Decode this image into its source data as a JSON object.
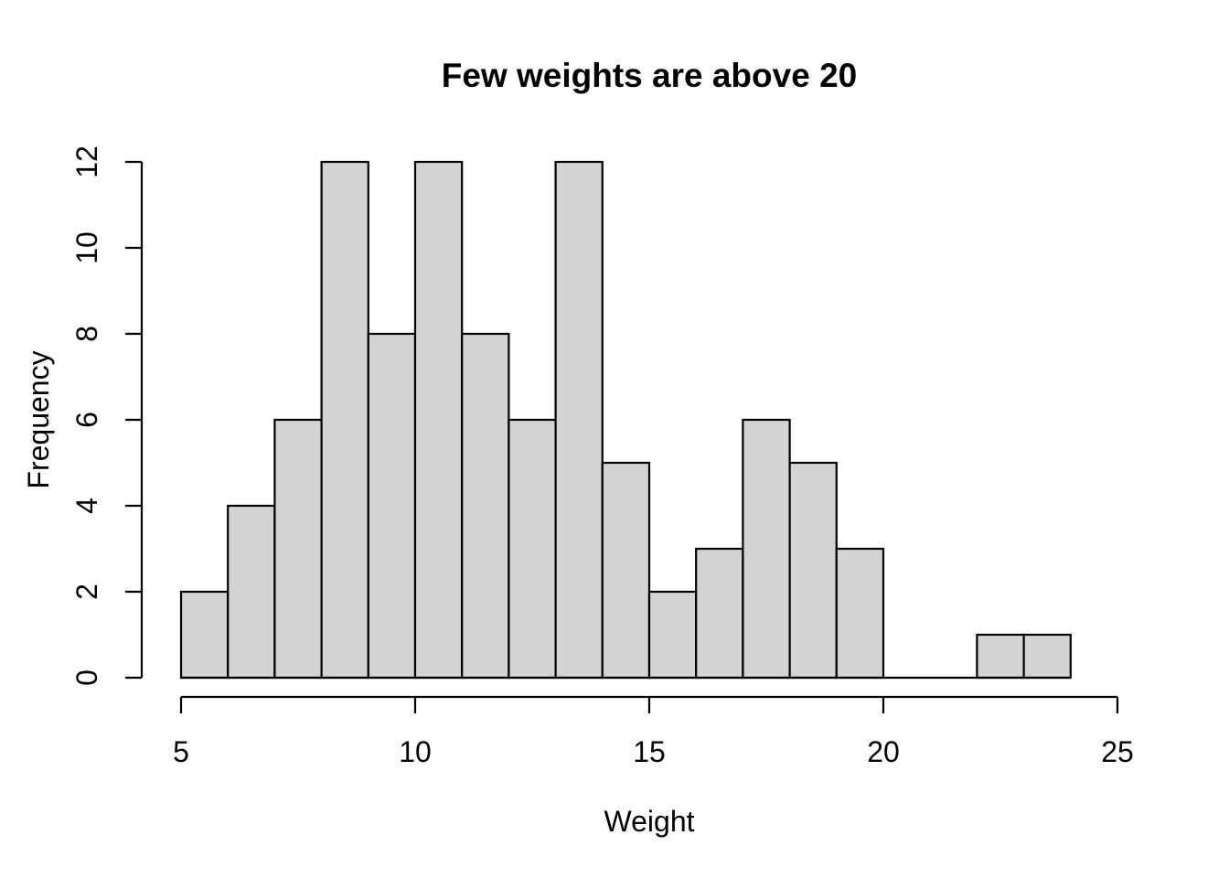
{
  "figure": {
    "background": "#ffffff"
  },
  "chart_data": {
    "type": "bar",
    "subtype": "histogram",
    "title": "Few weights are above 20",
    "xlabel": "Weight",
    "ylabel": "Frequency",
    "bin_edges": [
      5,
      6,
      7,
      8,
      9,
      10,
      11,
      12,
      13,
      14,
      15,
      16,
      17,
      18,
      19,
      20,
      21,
      22,
      23,
      24
    ],
    "counts": [
      2,
      4,
      6,
      12,
      8,
      12,
      8,
      6,
      12,
      5,
      2,
      3,
      6,
      5,
      3,
      0,
      0,
      1,
      1
    ],
    "x_ticks": [
      5,
      10,
      15,
      20,
      25
    ],
    "y_ticks": [
      0,
      2,
      4,
      6,
      8,
      10,
      12
    ],
    "xlim": [
      5,
      25
    ],
    "ylim": [
      0,
      12
    ],
    "grid": false,
    "legend": null,
    "style": {
      "bar_fill": "#d3d3d3",
      "bar_stroke": "#000000",
      "axis_color": "#000000",
      "text_color": "#000000"
    }
  }
}
